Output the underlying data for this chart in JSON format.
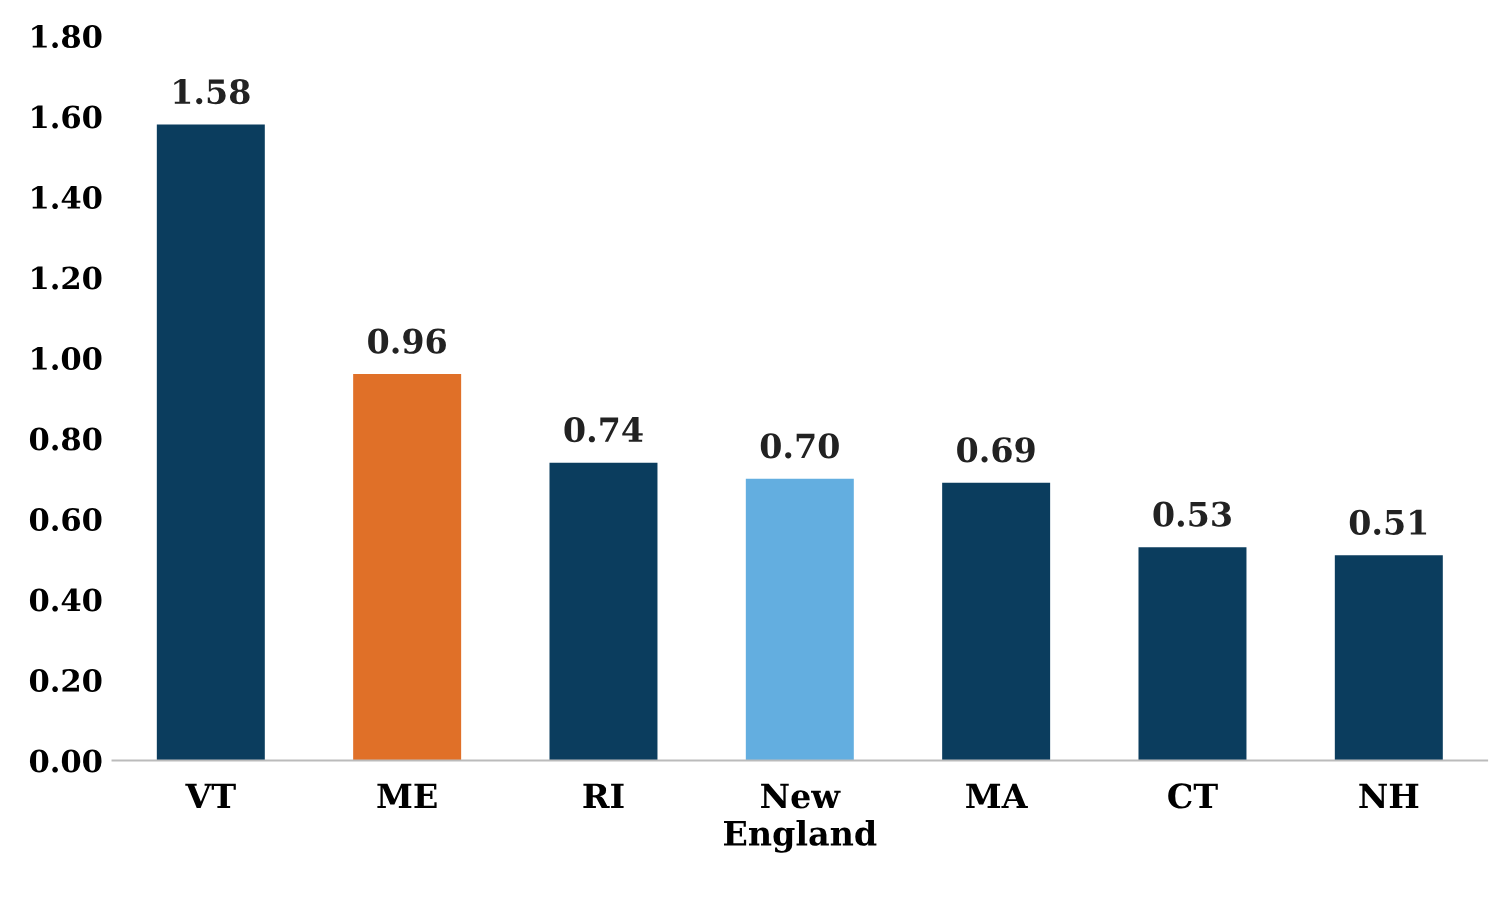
{
  "chart_data": {
    "type": "bar",
    "categories": [
      "VT",
      "ME",
      "RI",
      "New\nEngland",
      "MA",
      "CT",
      "NH"
    ],
    "values": [
      1.58,
      0.96,
      0.74,
      0.7,
      0.69,
      0.53,
      0.51
    ],
    "colors": [
      "#0b3d5e",
      "#e07028",
      "#0b3d5e",
      "#63aee0",
      "#0b3d5e",
      "#0b3d5e",
      "#0b3d5e"
    ],
    "value_labels": [
      "1.58",
      "0.96",
      "0.74",
      "0.70",
      "0.69",
      "0.53",
      "0.51"
    ],
    "ylim": [
      0,
      1.8
    ],
    "yticks": [
      {
        "value": 0,
        "label": "0.00"
      },
      {
        "value": 0.2,
        "label": "0.20"
      },
      {
        "value": 0.4,
        "label": "0.40"
      },
      {
        "value": 0.6,
        "label": "0.60"
      },
      {
        "value": 0.8,
        "label": "0.80"
      },
      {
        "value": 1.0,
        "label": "1.00"
      },
      {
        "value": 1.2,
        "label": "1.20"
      },
      {
        "value": 1.4,
        "label": "1.40"
      },
      {
        "value": 1.6,
        "label": "1.60"
      },
      {
        "value": 1.8,
        "label": "1.80"
      }
    ],
    "grid": false,
    "legend": false
  }
}
